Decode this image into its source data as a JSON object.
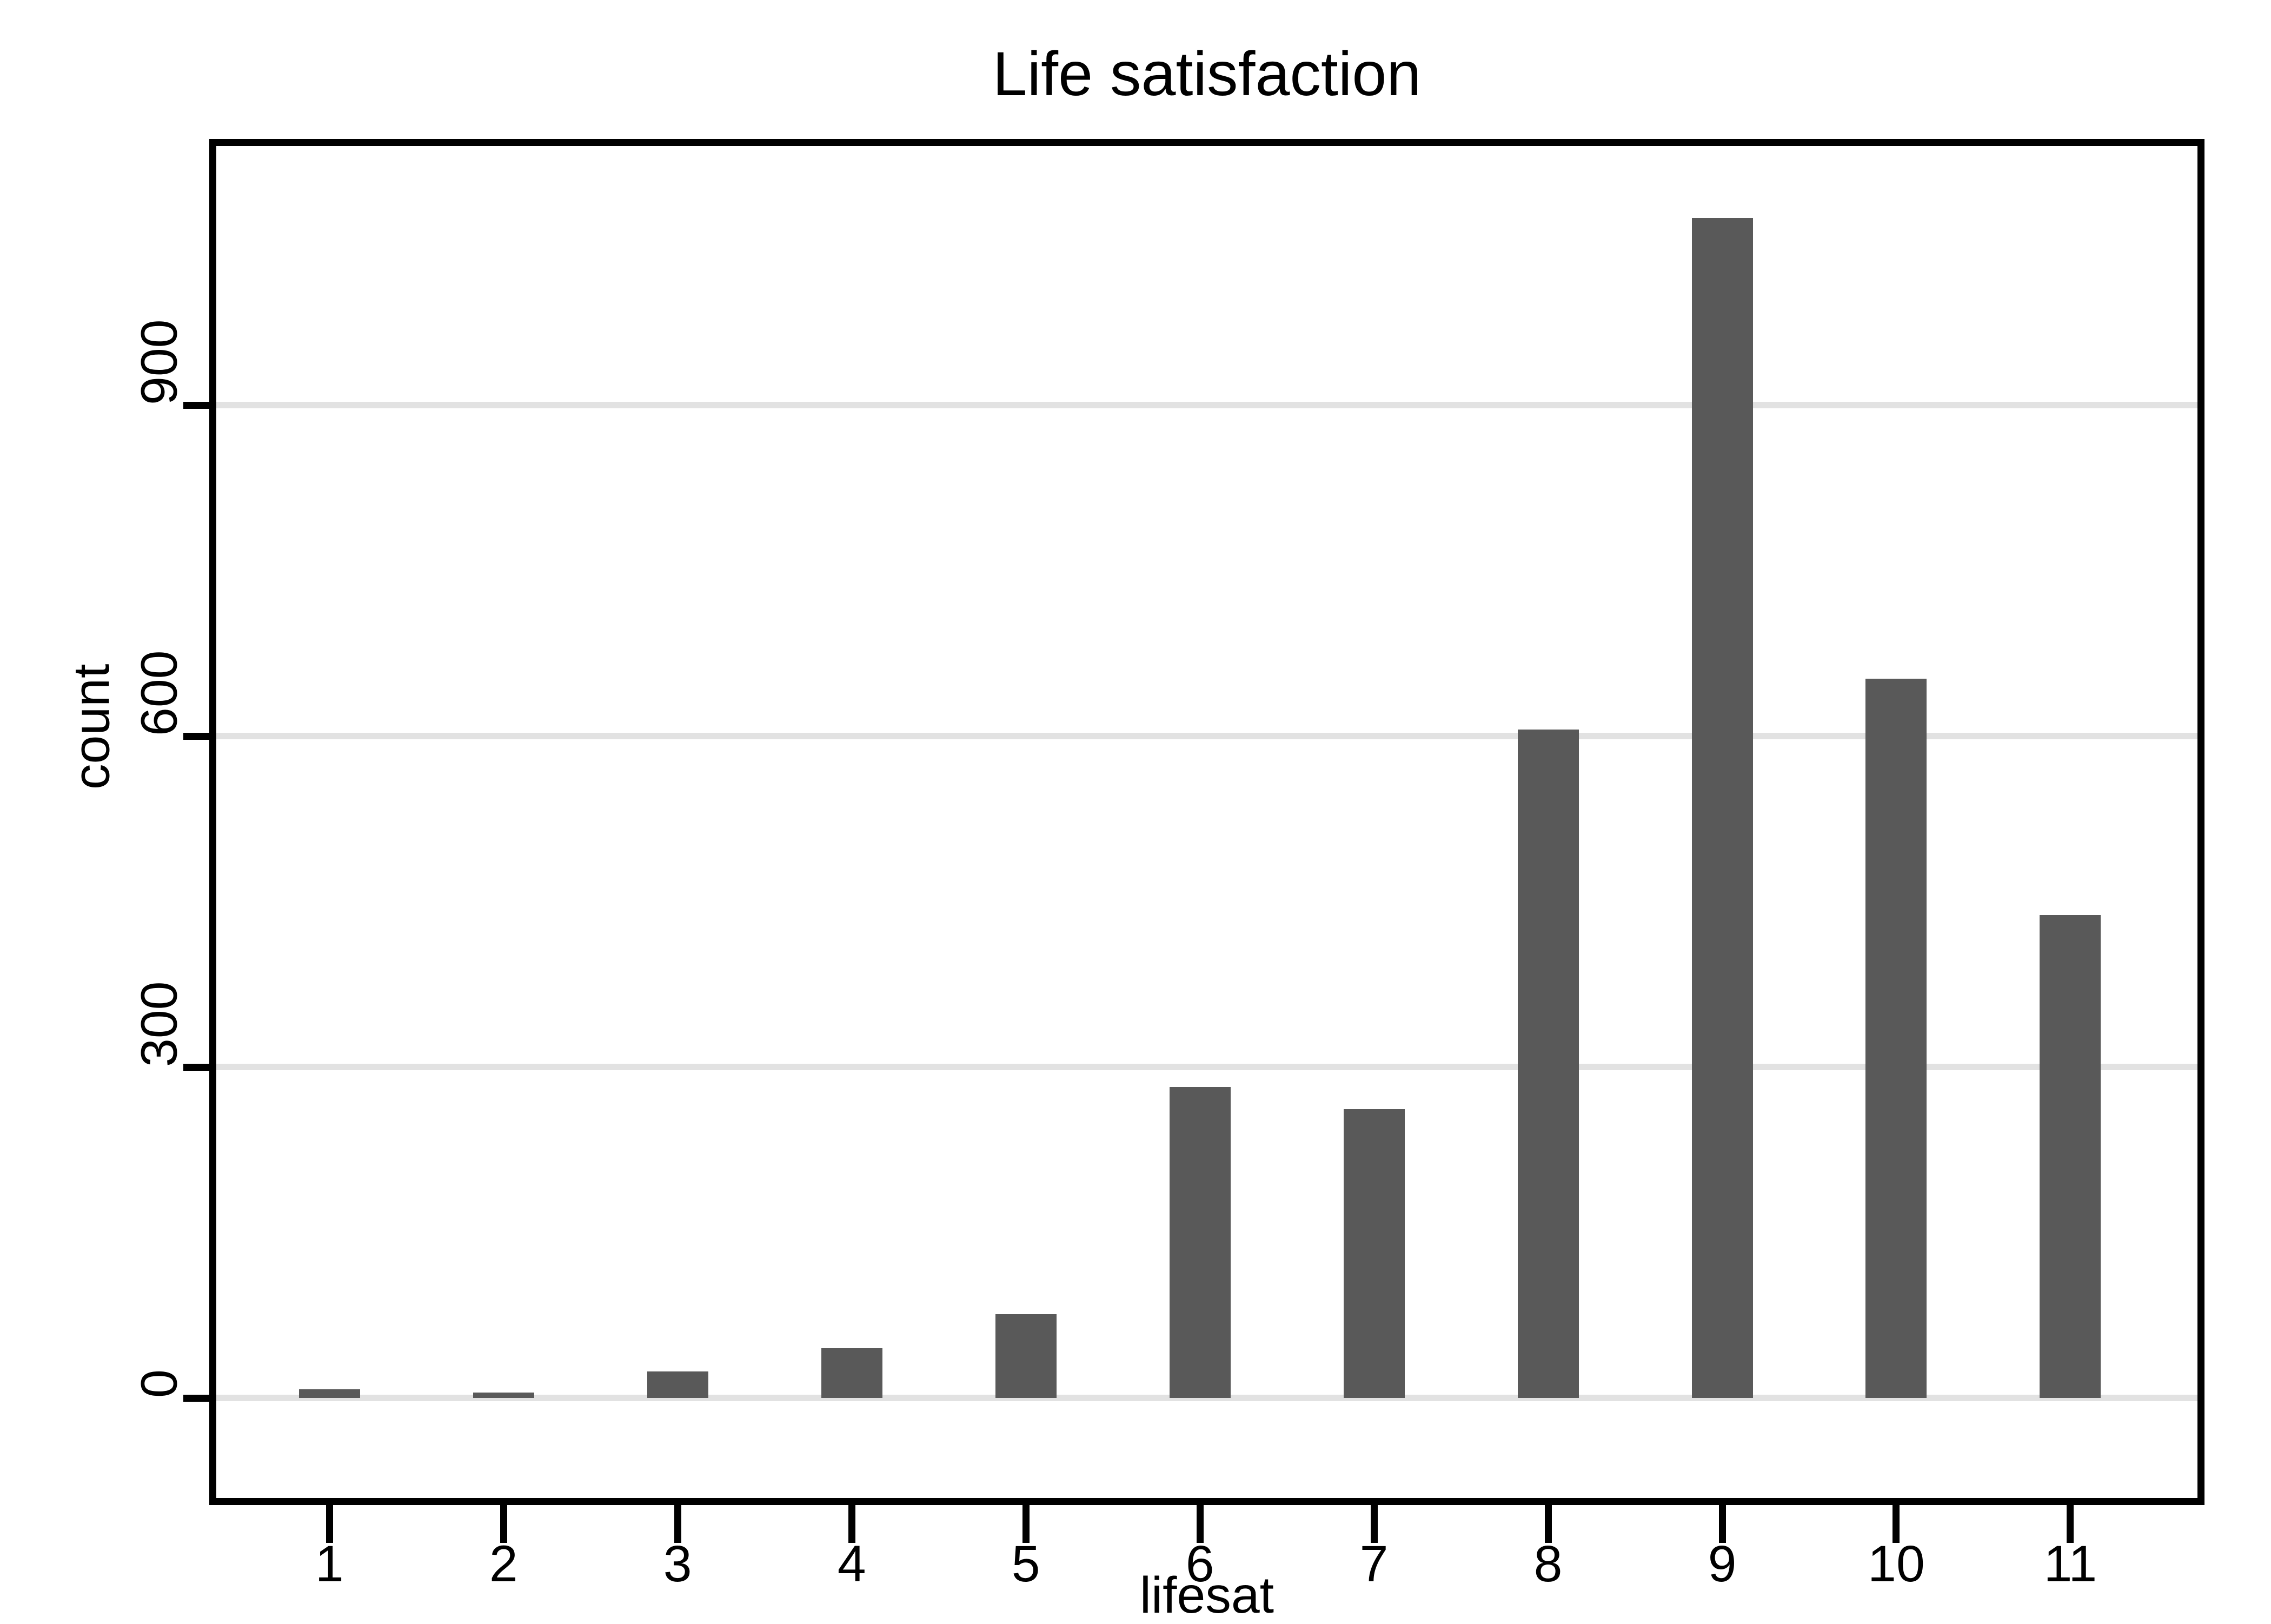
{
  "chart_data": {
    "type": "bar",
    "title": "Life satisfaction",
    "xlabel": "lifesat",
    "ylabel": "count",
    "categories": [
      1,
      2,
      3,
      4,
      5,
      6,
      7,
      8,
      9,
      10,
      11
    ],
    "values": [
      8,
      5,
      24,
      45,
      76,
      282,
      262,
      606,
      1070,
      652,
      438
    ],
    "yticks": [
      0,
      300,
      600,
      900
    ],
    "ylim": [
      0,
      1135
    ],
    "xlim": [
      0.35,
      11.73
    ],
    "grid": "horizontal",
    "legend_position": "none",
    "colors": {
      "bar": "#595959",
      "grid": "#e2e2e2",
      "axis": "#000000",
      "background": "#ffffff",
      "text": "#000000"
    }
  }
}
